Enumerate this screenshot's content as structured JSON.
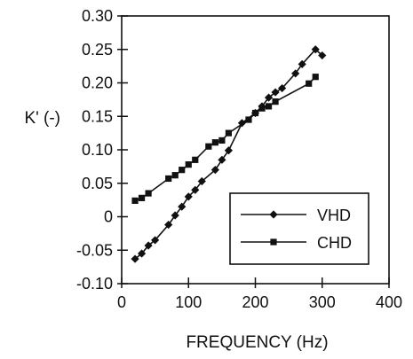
{
  "chart_data": {
    "type": "line",
    "xlabel": "FREQUENCY (Hz)",
    "ylabel": "K' (-)",
    "xlim": [
      0,
      400
    ],
    "ylim": [
      -0.1,
      0.3
    ],
    "xticks": [
      "0",
      "100",
      "200",
      "300",
      "400"
    ],
    "yticks": [
      "0.30",
      "0.25",
      "0.20",
      "0.15",
      "0.10",
      "0.05",
      "0",
      "-0.05",
      "-0.10"
    ],
    "legend_position": "bottom-right",
    "grid": false,
    "series": [
      {
        "name": "VHD",
        "marker": "diamond",
        "x": [
          20,
          30,
          40,
          50,
          70,
          80,
          90,
          100,
          110,
          120,
          140,
          150,
          160,
          180,
          200,
          210,
          220,
          230,
          240,
          260,
          270,
          290,
          300
        ],
        "y": [
          -0.063,
          -0.055,
          -0.043,
          -0.035,
          -0.012,
          0.002,
          0.015,
          0.03,
          0.04,
          0.053,
          0.07,
          0.085,
          0.099,
          0.14,
          0.155,
          0.165,
          0.178,
          0.186,
          0.192,
          0.214,
          0.228,
          0.25,
          0.241
        ]
      },
      {
        "name": "CHD",
        "marker": "square",
        "x": [
          20,
          30,
          40,
          70,
          80,
          90,
          100,
          110,
          130,
          140,
          150,
          160,
          190,
          200,
          210,
          220,
          230,
          280,
          290
        ],
        "y": [
          0.024,
          0.028,
          0.035,
          0.057,
          0.062,
          0.07,
          0.078,
          0.085,
          0.105,
          0.111,
          0.114,
          0.125,
          0.145,
          0.155,
          0.162,
          0.165,
          0.172,
          0.199,
          0.209
        ]
      }
    ]
  }
}
